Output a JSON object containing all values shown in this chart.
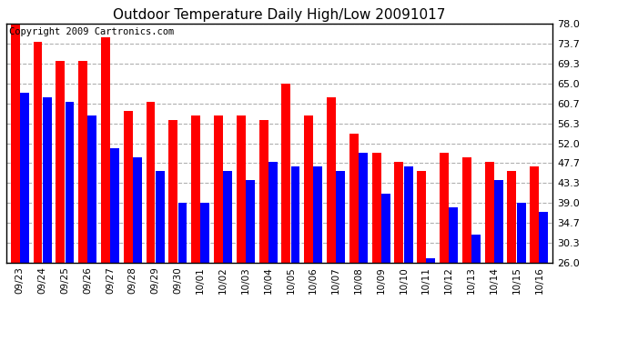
{
  "title": "Outdoor Temperature Daily High/Low 20091017",
  "copyright": "Copyright 2009 Cartronics.com",
  "dates": [
    "09/23",
    "09/24",
    "09/25",
    "09/26",
    "09/27",
    "09/28",
    "09/29",
    "09/30",
    "10/01",
    "10/02",
    "10/03",
    "10/04",
    "10/05",
    "10/06",
    "10/07",
    "10/08",
    "10/09",
    "10/10",
    "10/11",
    "10/12",
    "10/13",
    "10/14",
    "10/15",
    "10/16"
  ],
  "highs": [
    78.0,
    74.0,
    70.0,
    70.0,
    75.0,
    59.0,
    61.0,
    57.0,
    58.0,
    58.0,
    58.0,
    57.0,
    65.0,
    58.0,
    62.0,
    54.0,
    50.0,
    48.0,
    46.0,
    50.0,
    49.0,
    48.0,
    46.0,
    47.0
  ],
  "lows": [
    63.0,
    62.0,
    61.0,
    58.0,
    51.0,
    49.0,
    46.0,
    39.0,
    39.0,
    46.0,
    44.0,
    48.0,
    47.0,
    47.0,
    46.0,
    50.0,
    41.0,
    47.0,
    27.0,
    38.0,
    32.0,
    44.0,
    39.0,
    37.0
  ],
  "ylim_min": 26.0,
  "ylim_max": 78.0,
  "yticks": [
    26.0,
    30.3,
    34.7,
    39.0,
    43.3,
    47.7,
    52.0,
    56.3,
    60.7,
    65.0,
    69.3,
    73.7,
    78.0
  ],
  "high_color": "#ff0000",
  "low_color": "#0000ff",
  "background_color": "#ffffff",
  "grid_color": "#b0b0b0",
  "title_fontsize": 11,
  "copyright_fontsize": 7.5
}
